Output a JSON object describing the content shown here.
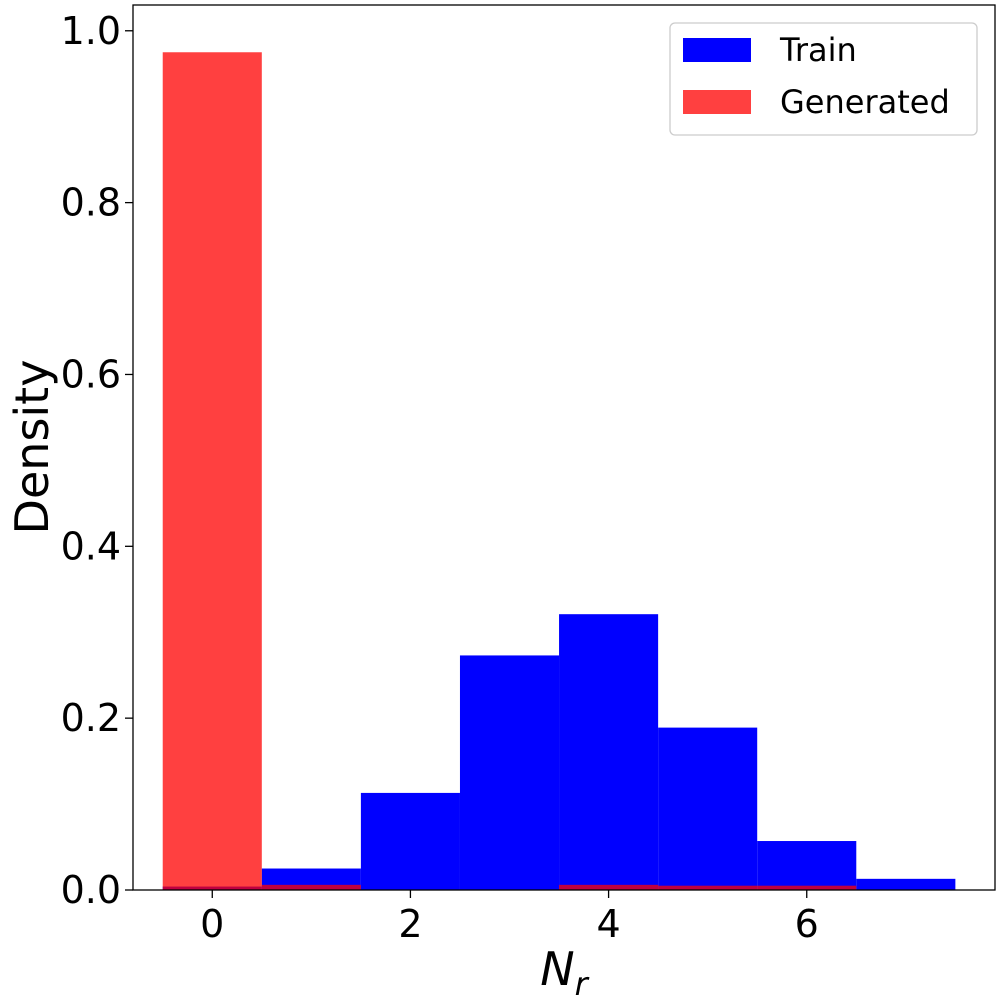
{
  "chart_data": {
    "type": "bar",
    "xlabel": "N",
    "xlabel_subscript": "r",
    "ylabel": "Density",
    "xlim": [
      -0.8,
      7.9
    ],
    "ylim": [
      0,
      1.03
    ],
    "bin_width": 1,
    "x_ticks": [
      0,
      2,
      4,
      6
    ],
    "x_tick_labels": [
      "0",
      "2",
      "4",
      "6"
    ],
    "y_ticks": [
      0.0,
      0.2,
      0.4,
      0.6,
      0.8,
      1.0
    ],
    "y_tick_labels": [
      "0.0",
      "0.2",
      "0.4",
      "0.6",
      "0.8",
      "1.0"
    ],
    "grid": false,
    "legend_position": "top-right",
    "series": [
      {
        "name": "Train",
        "color": "#0000ff",
        "x": [
          0,
          1,
          2,
          3,
          4,
          5,
          6,
          7
        ],
        "values": [
          0.004,
          0.025,
          0.113,
          0.273,
          0.321,
          0.189,
          0.057,
          0.013
        ]
      },
      {
        "name": "Generated",
        "color": "#ff0000",
        "opacity": 0.75,
        "x": [
          0,
          1,
          2,
          3,
          4,
          5,
          6,
          7
        ],
        "values": [
          0.975,
          0.006,
          0.0,
          0.0,
          0.006,
          0.005,
          0.005,
          0.0
        ]
      }
    ]
  }
}
